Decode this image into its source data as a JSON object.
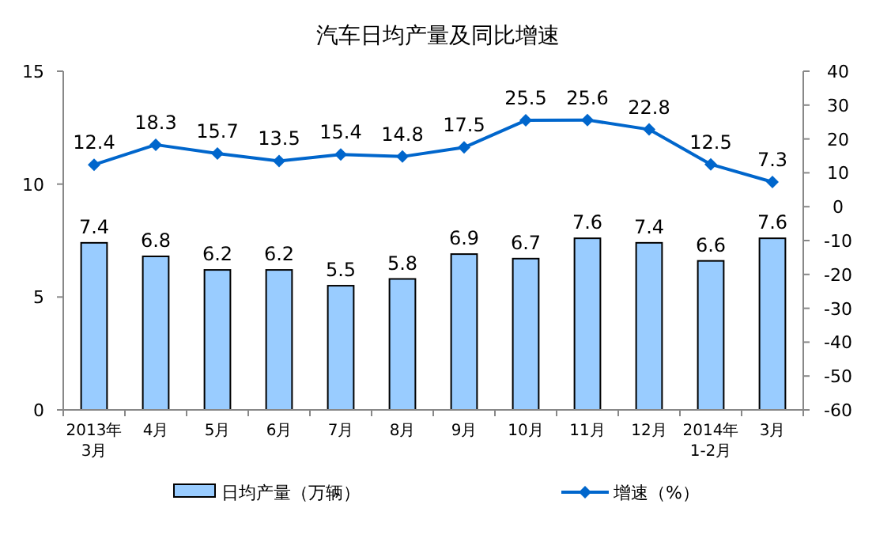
{
  "chart_data": {
    "type": "bar",
    "title": "汽车日均产量及同比增速",
    "categories": [
      "2013年\n3月",
      "4月",
      "5月",
      "6月",
      "7月",
      "8月",
      "9月",
      "10月",
      "11月",
      "12月",
      "2014年\n1-2月",
      "3月"
    ],
    "series": [
      {
        "name": "日均产量（万辆）",
        "color": "#99ccff",
        "values": [
          7.4,
          6.8,
          6.2,
          6.2,
          5.5,
          5.8,
          6.9,
          6.7,
          7.6,
          7.4,
          6.6,
          7.6
        ]
      },
      {
        "name": "增速（%）",
        "type": "line",
        "axis": "y2",
        "color": "#0066cc",
        "marker": "diamond",
        "values": [
          12.4,
          18.3,
          15.7,
          13.5,
          15.4,
          14.8,
          17.5,
          25.5,
          25.6,
          22.8,
          12.5,
          7.3
        ]
      }
    ],
    "ylim": [
      0,
      15
    ],
    "yticks": [
      0,
      5,
      10,
      15
    ],
    "y2lim": [
      -60,
      40
    ],
    "y2ticks": [
      -60,
      -50,
      -40,
      -30,
      -20,
      -10,
      0,
      10,
      20,
      30,
      40
    ],
    "data_labels": true,
    "grid": false,
    "legend": "bottom"
  }
}
